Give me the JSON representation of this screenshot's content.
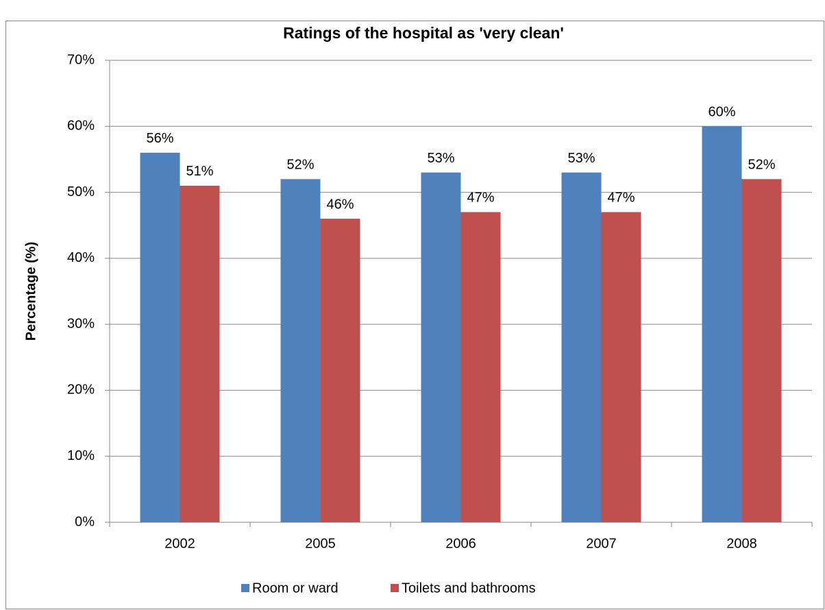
{
  "chart_data": {
    "type": "bar",
    "title": "Ratings of the hospital as 'very clean'",
    "y_label": "Percentage (%)",
    "categories": [
      "2002",
      "2005",
      "2006",
      "2007",
      "2008"
    ],
    "series": [
      {
        "name": "Room or ward",
        "color": "#4f81bd",
        "values": [
          56,
          52,
          53,
          53,
          60
        ],
        "value_labels": [
          "56%",
          "52%",
          "53%",
          "53%",
          "60%"
        ]
      },
      {
        "name": "Toilets and bathrooms",
        "color": "#c0504d",
        "values": [
          51,
          46,
          47,
          47,
          52
        ],
        "value_labels": [
          "51%",
          "46%",
          "47%",
          "47%",
          "52%"
        ]
      }
    ],
    "ylim": [
      0,
      70
    ],
    "yticks": [
      {
        "value": 0,
        "label": "0%"
      },
      {
        "value": 10,
        "label": "10%"
      },
      {
        "value": 20,
        "label": "20%"
      },
      {
        "value": 30,
        "label": "30%"
      },
      {
        "value": 40,
        "label": "40%"
      },
      {
        "value": 50,
        "label": "50%"
      },
      {
        "value": 60,
        "label": "60%"
      },
      {
        "value": 70,
        "label": "70%"
      }
    ],
    "grid": true,
    "legend": "bottom"
  }
}
